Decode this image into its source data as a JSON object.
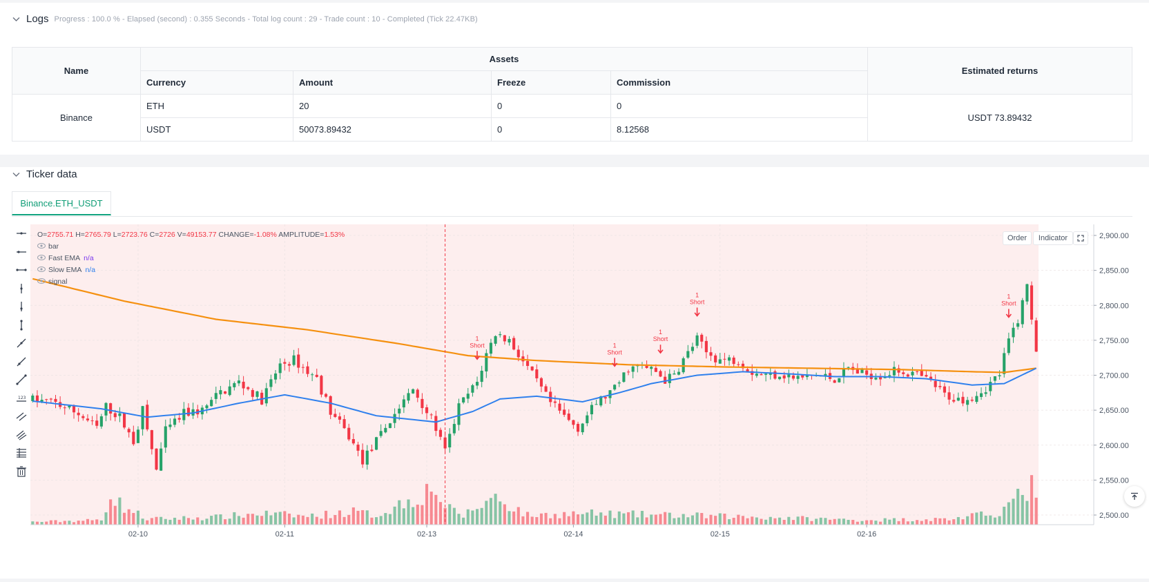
{
  "logs": {
    "title": "Logs",
    "meta": "Progress : 100.0 % - Elapsed (second) : 0.355  Seconds - Total log count : 29 - Trade count : 10 - Completed (Tick 22.47KB)",
    "table": {
      "name_header": "Name",
      "assets_header": "Assets",
      "returns_header": "Estimated returns",
      "sub_headers": [
        "Currency",
        "Amount",
        "Freeze",
        "Commission"
      ],
      "exchange": "Binance",
      "rows": [
        {
          "currency": "ETH",
          "amount": "20",
          "freeze": "0",
          "commission": "0"
        },
        {
          "currency": "USDT",
          "amount": "50073.89432",
          "freeze": "0",
          "commission": "8.12568"
        }
      ],
      "estimated_returns": "USDT 73.89432"
    }
  },
  "ticker": {
    "title": "Ticker data",
    "tab": "Binance.ETH_USDT",
    "order_btn": "Order",
    "indicator_btn": "Indicator"
  },
  "legend": {
    "ohlc": [
      {
        "k": "O=",
        "v": "2755.71"
      },
      {
        "k": " H=",
        "v": "2765.79"
      },
      {
        "k": " L=",
        "v": "2723.76"
      },
      {
        "k": " C=",
        "v": "2726"
      },
      {
        "k": " V=",
        "v": "49153.77"
      },
      {
        "k": " CHANGE=",
        "v": "-1.08%"
      },
      {
        "k": " AMPLITUDE=",
        "v": "1.53%"
      }
    ],
    "items": [
      {
        "label": "bar",
        "value": ""
      },
      {
        "label": "Fast EMA",
        "value": "n/a"
      },
      {
        "label": "Slow EMA",
        "value": "n/a"
      },
      {
        "label": "signal",
        "value": ""
      }
    ]
  },
  "colors": {
    "up": "#26a269",
    "down": "#f23645",
    "fast_ema": "#2f80ed",
    "slow_ema": "#f5900f",
    "bg_tint": "#fdeeee",
    "accent": "#10a37f"
  },
  "chart_data": {
    "type": "candlestick",
    "x_ticks": [
      "02-10",
      "02-11",
      "02-13",
      "02-14",
      "02-15",
      "02-16"
    ],
    "y_ticks": [
      "2,900.00",
      "2,850.00",
      "2,800.00",
      "2,750.00",
      "2,700.00",
      "2,650.00",
      "2,600.00",
      "2,550.00",
      "2,500.00"
    ],
    "ylim": [
      2490,
      2915
    ],
    "price_anchors": [
      [
        0,
        2665
      ],
      [
        5,
        2660
      ],
      [
        10,
        2645
      ],
      [
        14,
        2625
      ],
      [
        16,
        2655
      ],
      [
        19,
        2640
      ],
      [
        22,
        2605
      ],
      [
        24,
        2650
      ],
      [
        27,
        2565
      ],
      [
        29,
        2620
      ],
      [
        33,
        2645
      ],
      [
        37,
        2650
      ],
      [
        41,
        2675
      ],
      [
        45,
        2690
      ],
      [
        50,
        2665
      ],
      [
        54,
        2715
      ],
      [
        57,
        2722
      ],
      [
        60,
        2705
      ],
      [
        62,
        2695
      ],
      [
        65,
        2648
      ],
      [
        69,
        2612
      ],
      [
        72,
        2578
      ],
      [
        75,
        2605
      ],
      [
        79,
        2645
      ],
      [
        83,
        2680
      ],
      [
        85,
        2660
      ],
      [
        88,
        2625
      ],
      [
        90,
        2590
      ],
      [
        93,
        2655
      ],
      [
        97,
        2690
      ],
      [
        99,
        2730
      ],
      [
        101,
        2760
      ],
      [
        104,
        2750
      ],
      [
        107,
        2720
      ],
      [
        110,
        2690
      ],
      [
        113,
        2660
      ],
      [
        117,
        2635
      ],
      [
        119,
        2625
      ],
      [
        123,
        2660
      ],
      [
        127,
        2680
      ],
      [
        130,
        2710
      ],
      [
        133,
        2712
      ],
      [
        136,
        2705
      ],
      [
        138,
        2693
      ],
      [
        140,
        2700
      ],
      [
        142,
        2722
      ],
      [
        145,
        2752
      ],
      [
        147,
        2732
      ],
      [
        150,
        2722
      ],
      [
        154,
        2722
      ],
      [
        157,
        2705
      ],
      [
        160,
        2700
      ],
      [
        163,
        2702
      ],
      [
        167,
        2695
      ],
      [
        171,
        2700
      ],
      [
        175,
        2695
      ],
      [
        178,
        2710
      ],
      [
        181,
        2702
      ],
      [
        185,
        2700
      ],
      [
        189,
        2707
      ],
      [
        193,
        2700
      ],
      [
        196,
        2690
      ],
      [
        199,
        2672
      ],
      [
        202,
        2665
      ],
      [
        205,
        2670
      ],
      [
        208,
        2682
      ],
      [
        211,
        2702
      ],
      [
        213,
        2750
      ],
      [
        215,
        2780
      ],
      [
        217,
        2828
      ],
      [
        219,
        2740
      ]
    ],
    "volume_anchors": [
      [
        0,
        3
      ],
      [
        15,
        5
      ],
      [
        17,
        35
      ],
      [
        19,
        22
      ],
      [
        25,
        6
      ],
      [
        40,
        8
      ],
      [
        50,
        12
      ],
      [
        60,
        9
      ],
      [
        70,
        14
      ],
      [
        75,
        10
      ],
      [
        88,
        40
      ],
      [
        90,
        18
      ],
      [
        94,
        10
      ],
      [
        101,
        30
      ],
      [
        108,
        10
      ],
      [
        120,
        12
      ],
      [
        140,
        10
      ],
      [
        160,
        8
      ],
      [
        180,
        5
      ],
      [
        200,
        6
      ],
      [
        210,
        12
      ],
      [
        214,
        24
      ],
      [
        218,
        42
      ],
      [
        219,
        22
      ]
    ],
    "slow_ema": [
      [
        0,
        2838
      ],
      [
        20,
        2806
      ],
      [
        40,
        2780
      ],
      [
        60,
        2765
      ],
      [
        80,
        2745
      ],
      [
        95,
        2728
      ],
      [
        110,
        2721
      ],
      [
        130,
        2715
      ],
      [
        150,
        2712
      ],
      [
        170,
        2710
      ],
      [
        190,
        2708
      ],
      [
        205,
        2705
      ],
      [
        212,
        2704
      ],
      [
        219,
        2710
      ]
    ],
    "fast_ema": [
      [
        0,
        2663
      ],
      [
        15,
        2652
      ],
      [
        25,
        2640
      ],
      [
        35,
        2646
      ],
      [
        45,
        2660
      ],
      [
        55,
        2672
      ],
      [
        65,
        2660
      ],
      [
        75,
        2642
      ],
      [
        88,
        2633
      ],
      [
        96,
        2648
      ],
      [
        102,
        2666
      ],
      [
        110,
        2670
      ],
      [
        120,
        2662
      ],
      [
        128,
        2675
      ],
      [
        135,
        2688
      ],
      [
        145,
        2700
      ],
      [
        155,
        2705
      ],
      [
        165,
        2702
      ],
      [
        175,
        2698
      ],
      [
        185,
        2698
      ],
      [
        195,
        2695
      ],
      [
        205,
        2686
      ],
      [
        212,
        2688
      ],
      [
        219,
        2710
      ]
    ],
    "signals": [
      {
        "index": 97,
        "label": "Short",
        "count": "1"
      },
      {
        "index": 127,
        "label": "Short",
        "count": "1"
      },
      {
        "index": 137,
        "label": "Short",
        "count": "1"
      },
      {
        "index": 145,
        "label": "Short",
        "count": "1"
      },
      {
        "index": 213,
        "label": "Short",
        "count": "1"
      }
    ],
    "crosshair_index": 90
  }
}
